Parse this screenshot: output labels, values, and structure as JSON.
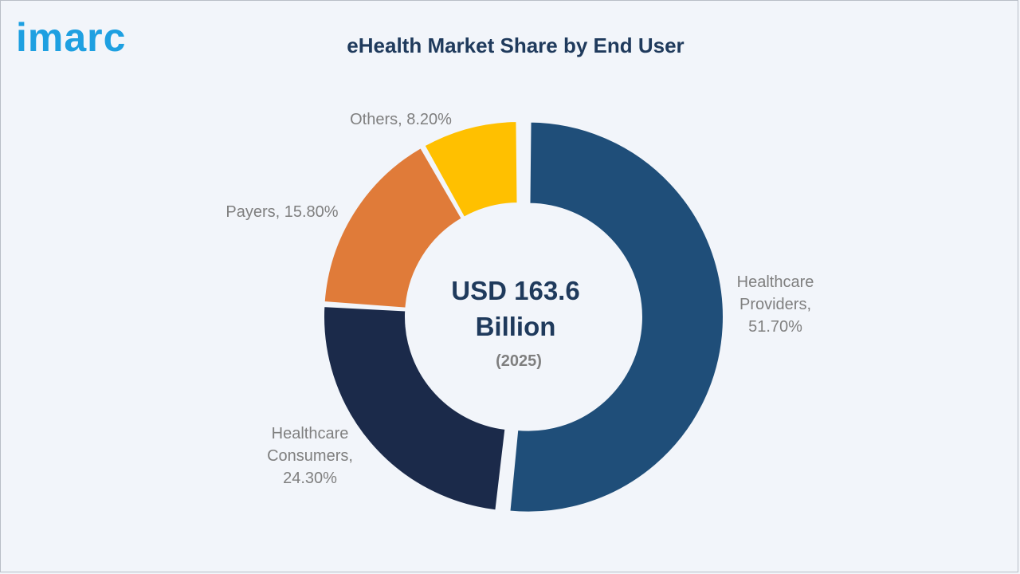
{
  "brand": {
    "logo_text": "imarc",
    "logo_color": "#1ea0e1"
  },
  "chart_data": {
    "type": "pie",
    "variant": "donut",
    "title": "eHealth Market Share by End User",
    "center_label": {
      "value": "USD 163.6",
      "unit": "Billion",
      "year": "(2025)"
    },
    "slices": [
      {
        "label_lines": [
          "Healthcare",
          "Providers,",
          "51.70%"
        ],
        "value": 51.7,
        "color": "#1f4e79",
        "exploded": true
      },
      {
        "label_lines": [
          "Healthcare",
          "Consumers,",
          "24.30%"
        ],
        "value": 24.3,
        "color": "#1b2a4a",
        "exploded": false
      },
      {
        "label_lines": [
          "Payers, 15.80%"
        ],
        "value": 15.8,
        "color": "#e07b39",
        "exploded": false
      },
      {
        "label_lines": [
          "Others, 8.20%"
        ],
        "value": 8.2,
        "color": "#ffc000",
        "exploded": false
      }
    ]
  }
}
